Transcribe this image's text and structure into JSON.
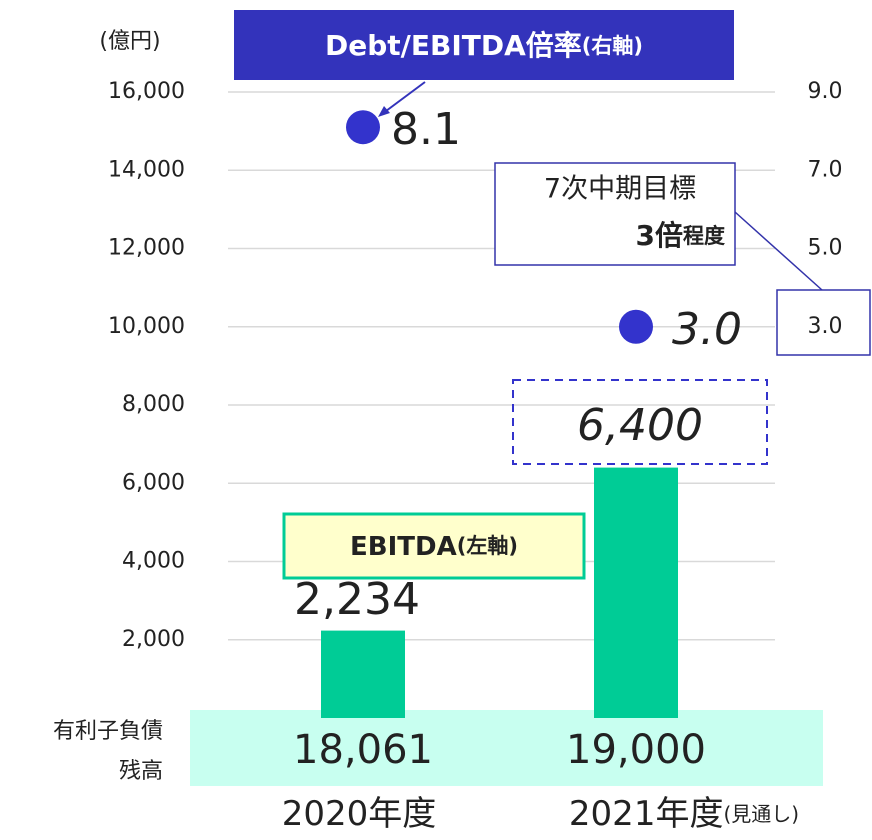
{
  "chart_data": {
    "type": "bar",
    "unit": "(億円)",
    "categories": [
      "2020年度",
      "2021年度(見通し)"
    ],
    "ylim": [
      0,
      16000
    ],
    "yticks": [
      {
        "value": 2000,
        "label": "2,000"
      },
      {
        "value": 4000,
        "label": "4,000"
      },
      {
        "value": 6000,
        "label": "6,000"
      },
      {
        "value": 8000,
        "label": "8,000"
      },
      {
        "value": 10000,
        "label": "10,000"
      },
      {
        "value": 12000,
        "label": "12,000"
      },
      {
        "value": 14000,
        "label": "14,000"
      },
      {
        "value": 16000,
        "label": "16,000"
      }
    ],
    "y2lim": [
      -7,
      9
    ],
    "y2ticks": [
      {
        "value": 3,
        "label": "3.0"
      },
      {
        "value": 5,
        "label": "5.0"
      },
      {
        "value": 7,
        "label": "7.0"
      },
      {
        "value": 9,
        "label": "9.0"
      }
    ],
    "grid": true,
    "series": [
      {
        "name": "EBITDA(左軸)",
        "type": "bar",
        "color": "#00cc96",
        "values": [
          2234,
          6400
        ],
        "value_labels": [
          "2,234",
          "6,400"
        ]
      },
      {
        "name": "Debt/EBITDA倍率(右軸)",
        "type": "scatter",
        "axis": "y2",
        "color": "#3333cc",
        "values": [
          8.1,
          3.0
        ],
        "value_labels": [
          "8.1",
          "3.0"
        ]
      }
    ],
    "target_note": [
      "7次中期目標",
      "3倍程度"
    ],
    "debt_row": {
      "label": [
        "有利子負債",
        "残高"
      ],
      "values": [
        18061,
        19000
      ],
      "value_labels": [
        "18,061",
        "19,000"
      ]
    }
  }
}
